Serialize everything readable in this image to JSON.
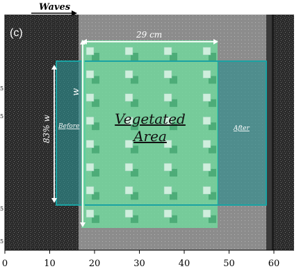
{
  "panel_label": "(c)",
  "waves_label": "Waves",
  "width_label": "29 cm",
  "w_label": "w",
  "height_label": "83% w",
  "before_label": "Before",
  "after_label": "After",
  "vegetated_label_line1": "Vegetated",
  "vegetated_label_line2": "Area",
  "x_axis": {
    "ticks": [
      "0",
      "10",
      "20",
      "30",
      "40",
      "50",
      "60"
    ],
    "values": [
      0,
      10,
      20,
      30,
      40,
      50,
      60
    ]
  },
  "left_tick_marks": [
    "5",
    "5",
    "5",
    "5"
  ],
  "colors": {
    "vegetated_fill": "#6fdc9e",
    "before_after_fill": "#2e8d8d",
    "box_stroke": "#1aa3a3",
    "arrow_white": "#ffffff",
    "photo_dark": "#2a2a2a",
    "tray_light": "#8f8f8f"
  },
  "stems": {
    "columns": 4,
    "rows": 8
  }
}
